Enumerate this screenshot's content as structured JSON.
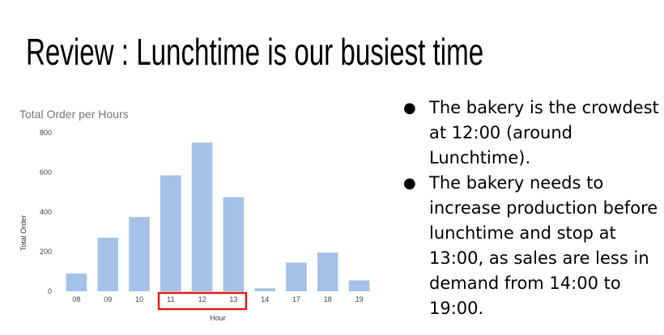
{
  "slide": {
    "title": "Review : Lunchtime is our busiest time"
  },
  "bullets": [
    {
      "marker": "●",
      "text": "The bakery is the crowdest at 12:00 (around Lunchtime)."
    },
    {
      "marker": "●",
      "text": "The bakery needs to increase production before lunchtime and stop at 13:00, as sales are less in demand from 14:00 to 19:00."
    }
  ],
  "colors": {
    "bar": "#a4c2e8",
    "highlight": "#e01b1b"
  },
  "chart_data": {
    "type": "bar",
    "title": "Total Order per Hours",
    "xlabel": "Hour",
    "ylabel": "Total Order",
    "categories": [
      "08",
      "09",
      "10",
      "11",
      "12",
      "13",
      "14",
      "17",
      "18",
      "19"
    ],
    "values": [
      90,
      270,
      375,
      585,
      750,
      475,
      15,
      145,
      195,
      55
    ],
    "ylim": [
      0,
      800
    ],
    "yticks": [
      0,
      200,
      400,
      600,
      800
    ],
    "grid": false,
    "legend": "none",
    "highlighted_categories": [
      "11",
      "12",
      "13"
    ]
  }
}
